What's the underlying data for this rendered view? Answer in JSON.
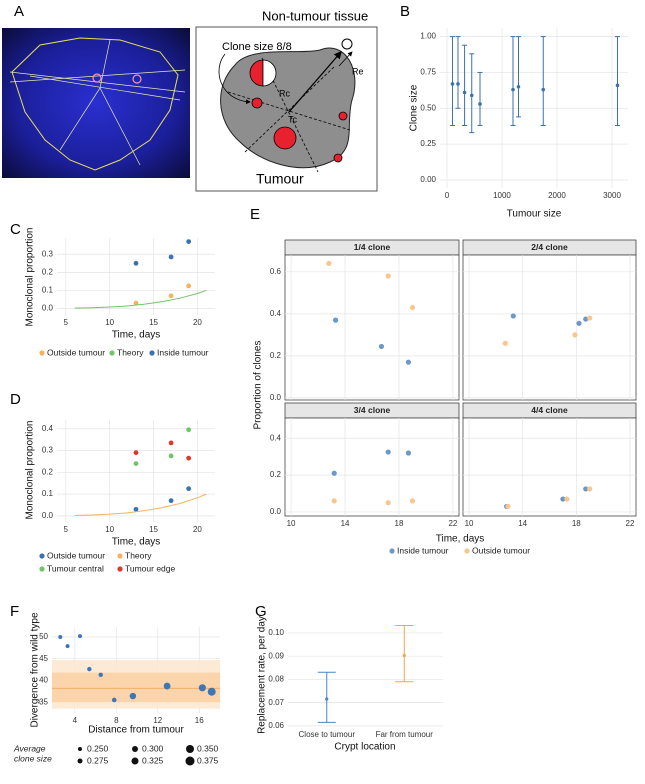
{
  "panel_labels": [
    "A",
    "B",
    "C",
    "D",
    "E",
    "F",
    "G"
  ],
  "diagram": {
    "title": "Non-tumour tissue",
    "clone_label": "Clone size 8/8",
    "rc": "Rc",
    "tc": "Tc",
    "re": "Re",
    "tumour": "Tumour"
  },
  "chart_data": [
    {
      "type": "scatter",
      "xlabel": "Tumour size",
      "ylabel": "Clone size",
      "color": "#3b72ad",
      "x": [
        100,
        200,
        320,
        450,
        600,
        1200,
        1300,
        1750,
        3100
      ],
      "values": [
        0.67,
        0.67,
        0.61,
        0.59,
        0.53,
        0.63,
        0.65,
        0.63,
        0.66
      ],
      "lower": [
        0.38,
        0.5,
        0.38,
        0.33,
        0.38,
        0.38,
        0.44,
        0.38,
        0.38
      ],
      "upper": [
        1,
        1,
        0.94,
        0.88,
        0.75,
        1,
        1,
        1,
        1
      ],
      "xlim": [
        -127,
        3291
      ],
      "ylim": [
        -0.056,
        1.06
      ],
      "xticks": [
        0,
        1000,
        2000,
        3000
      ],
      "yticks": [
        {
          "value": 0,
          "label": "0.00"
        },
        0.25,
        {
          "value": 0.5,
          "label": "0.50"
        },
        0.75,
        {
          "value": 1,
          "label": "1.00"
        }
      ],
      "grid": true
    },
    {
      "type": "scatter",
      "xlabel": "Time, days",
      "ylabel": "Monoclonal proportion",
      "series": [
        {
          "name": "Outside tumour",
          "color": "#f5b35c",
          "x": [
            13,
            17,
            19
          ],
          "values": [
            0.03,
            0.07,
            0.125
          ]
        },
        {
          "name": "Theory",
          "color": "#72c46a",
          "mark": "line",
          "x": [
            6,
            8,
            10,
            12,
            14,
            16,
            18,
            20,
            21
          ],
          "values": [
            0.002,
            0.004,
            0.008,
            0.014,
            0.024,
            0.038,
            0.057,
            0.083,
            0.1
          ]
        },
        {
          "name": "Inside tumour",
          "color": "#3b72ad",
          "x": [
            13,
            17,
            19
          ],
          "values": [
            0.25,
            0.285,
            0.37
          ]
        }
      ],
      "xlim": [
        4,
        22
      ],
      "ylim": [
        -0.036,
        0.39
      ],
      "xticks": [
        5,
        10,
        15,
        20
      ],
      "yticks": [
        {
          "value": 0,
          "label": "0.0"
        },
        0.1,
        0.2,
        0.3
      ],
      "grid": true
    },
    {
      "type": "scatter",
      "xlabel": "Time, days",
      "ylabel": "Monoclonal proportion",
      "series": [
        {
          "name": "Outside tumour",
          "color": "#3b72ad",
          "x": [
            13,
            17,
            19
          ],
          "values": [
            0.03,
            0.07,
            0.125
          ]
        },
        {
          "name": "Theory",
          "color": "#f5b35c",
          "mark": "line",
          "x": [
            6,
            8,
            10,
            12,
            14,
            16,
            18,
            20,
            21
          ],
          "values": [
            0.002,
            0.004,
            0.008,
            0.014,
            0.024,
            0.038,
            0.057,
            0.083,
            0.1
          ]
        },
        {
          "name": "Tumour central",
          "color": "#72c46a",
          "x": [
            13,
            17,
            19
          ],
          "values": [
            0.24,
            0.275,
            0.395
          ]
        },
        {
          "name": "Tumour edge",
          "color": "#e0372c",
          "x": [
            13,
            17,
            19
          ],
          "values": [
            0.29,
            0.335,
            0.265
          ]
        }
      ],
      "xlim": [
        4,
        22
      ],
      "ylim": [
        -0.028,
        0.44
      ],
      "xticks": [
        5,
        10,
        15,
        20
      ],
      "yticks": [
        {
          "value": 0,
          "label": "0.0"
        },
        0.1,
        0.2,
        0.3,
        0.4
      ],
      "grid": true
    },
    {
      "type": "scatter",
      "xlabel": "Time, days",
      "ylabel": "Proportion of clones",
      "series": [
        {
          "name": "Inside tumour",
          "color": "#6a98c9"
        },
        {
          "name": "Outside tumour",
          "color": "#f8c78e"
        }
      ],
      "xlim": [
        9.55,
        22.45
      ],
      "xticks": [
        10,
        14,
        18,
        22
      ],
      "grid": true,
      "facet_rows": [
        {
          "ylim": [
            -0.01,
            0.68
          ],
          "yticks": [
            {
              "value": 0,
              "label": "0.0"
            },
            0.2,
            0.4,
            0.6
          ],
          "facets": [
            {
              "title": "1/4 clone",
              "series": [
                {
                  "x": [
                    13.3,
                    16.7,
                    18.7
                  ],
                  "values": [
                    0.37,
                    0.245,
                    0.17
                  ]
                },
                {
                  "x": [
                    12.8,
                    17.2,
                    19
                  ],
                  "values": [
                    0.64,
                    0.58,
                    0.43
                  ]
                }
              ]
            },
            {
              "title": "2/4 clone",
              "series": [
                {
                  "x": [
                    13.3,
                    18.2,
                    18.7
                  ],
                  "values": [
                    0.39,
                    0.355,
                    0.375
                  ]
                },
                {
                  "x": [
                    12.7,
                    17.9,
                    19
                  ],
                  "values": [
                    0.26,
                    0.3,
                    0.38
                  ]
                }
              ]
            }
          ]
        },
        {
          "ylim": [
            -0.022,
            0.51
          ],
          "yticks": [
            {
              "value": 0,
              "label": "0.0"
            },
            0.2,
            0.4
          ],
          "facets": [
            {
              "title": "3/4 clone",
              "series": [
                {
                  "x": [
                    13.2,
                    17.2,
                    18.7
                  ],
                  "values": [
                    0.21,
                    0.325,
                    0.32
                  ]
                },
                {
                  "x": [
                    13.2,
                    17.2,
                    19
                  ],
                  "values": [
                    0.06,
                    0.05,
                    0.06
                  ]
                }
              ]
            },
            {
              "title": "4/4 clone",
              "series": [
                {
                  "x": [
                    12.8,
                    17,
                    18.7
                  ],
                  "values": [
                    0.03,
                    0.07,
                    0.125
                  ]
                },
                {
                  "x": [
                    12.9,
                    17.3,
                    19
                  ],
                  "values": [
                    0.03,
                    0.07,
                    0.125
                  ]
                }
              ]
            }
          ]
        }
      ]
    },
    {
      "type": "bubble",
      "xlabel": "Distance from tumour",
      "ylabel": "Divergence from wild type",
      "color": "#3e77b4",
      "x": [
        2.6,
        3.3,
        4.5,
        5.4,
        6.5,
        7.8,
        9.6,
        12.9,
        16.3,
        17.2
      ],
      "values": [
        50.0,
        47.9,
        50.2,
        42.6,
        41.3,
        35.5,
        36.4,
        38.7,
        38.3,
        37.4
      ],
      "sizes": [
        0.25,
        0.25,
        0.25,
        0.26,
        0.26,
        0.265,
        0.31,
        0.32,
        0.33,
        0.35
      ],
      "reference_line": 38.2,
      "reference_color": "#f0a04a",
      "bands": [
        [
          33.5,
          44.7
        ],
        [
          35,
          41.8
        ]
      ],
      "band_colors": [
        "#fde6cf",
        "#fad0a3"
      ],
      "xlim": [
        1.8,
        18
      ],
      "ylim": [
        32.5,
        52.3
      ],
      "xticks": [
        4,
        8,
        12,
        16
      ],
      "yticks": [
        35,
        40,
        45,
        50
      ],
      "grid": true,
      "size_title": [
        "Average",
        "clone size"
      ],
      "size_legend": [
        {
          "value": 0.25,
          "label": "0.250"
        },
        {
          "value": 0.275,
          "label": "0.275"
        },
        {
          "value": 0.3,
          "label": "0.300"
        },
        {
          "value": 0.325,
          "label": "0.325"
        },
        {
          "value": 0.35,
          "label": "0.350"
        },
        {
          "value": 0.375,
          "label": "0.375"
        }
      ]
    },
    {
      "type": "errorbar",
      "xlabel": "Crypt location",
      "ylabel": "Replacement rate, per day",
      "categories": [
        "Close to tumour",
        "Far from tumour"
      ],
      "values": [
        0.0716,
        0.0903
      ],
      "lower": [
        0.0615,
        0.079
      ],
      "upper": [
        0.0831,
        0.1032
      ],
      "colors": [
        "#4a84c4",
        "#f2a64e"
      ],
      "ylim": [
        0.0591,
        0.1047
      ],
      "yticks": [
        0.06,
        0.07,
        0.08,
        0.09,
        {
          "value": 0.1,
          "label": "0.10"
        }
      ],
      "grid": true
    }
  ]
}
